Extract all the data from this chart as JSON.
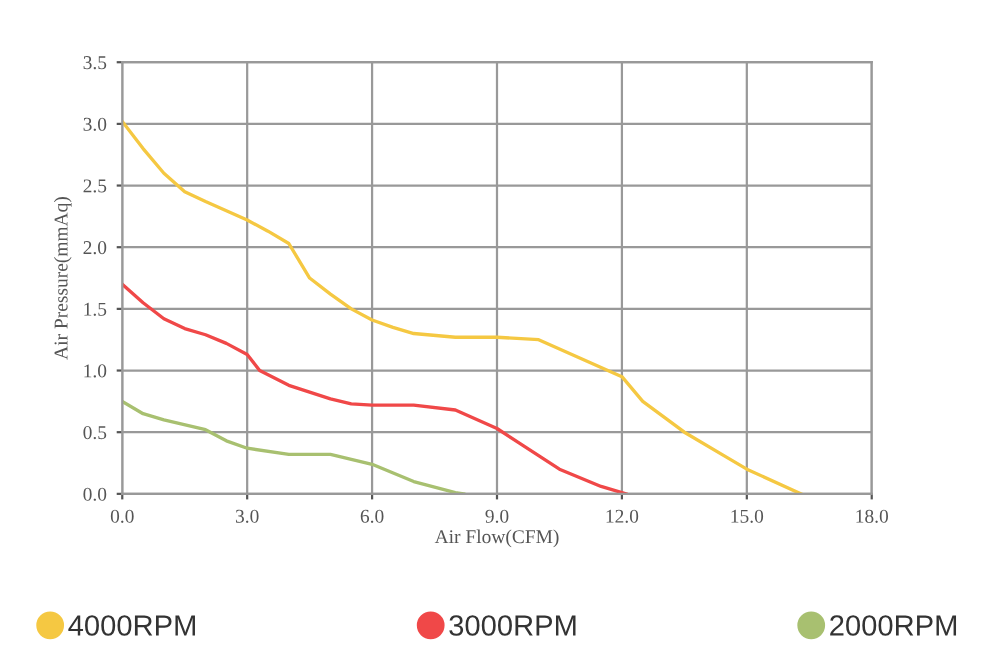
{
  "chart_data": {
    "type": "line",
    "xlabel": "Air Flow(CFM)",
    "ylabel": "Air Pressure(mmAq)",
    "xlim": [
      0,
      18
    ],
    "ylim": [
      0,
      3.5
    ],
    "xticks": [
      {
        "value": 0,
        "label": "0.0"
      },
      {
        "value": 3,
        "label": "3.0"
      },
      {
        "value": 6,
        "label": "6.0"
      },
      {
        "value": 9,
        "label": "9.0"
      },
      {
        "value": 12,
        "label": "12.0"
      },
      {
        "value": 15,
        "label": "15.0"
      },
      {
        "value": 18,
        "label": "18.0"
      }
    ],
    "yticks": [
      {
        "value": 0,
        "label": "0.0"
      },
      {
        "value": 0.5,
        "label": "0.5"
      },
      {
        "value": 1,
        "label": "1.0"
      },
      {
        "value": 1.5,
        "label": "1.5"
      },
      {
        "value": 2,
        "label": "2.0"
      },
      {
        "value": 2.5,
        "label": "2.5"
      },
      {
        "value": 3,
        "label": "3.0"
      },
      {
        "value": 3.5,
        "label": "3.5"
      }
    ],
    "grid": true,
    "legend": "bottom",
    "marker": "none",
    "line_style": "solid",
    "series": [
      {
        "name": "4000RPM",
        "color": "#f5c842",
        "x": [
          0,
          0.5,
          1,
          1.5,
          2,
          3,
          3.5,
          4,
          4.5,
          5,
          5.5,
          6,
          6.5,
          7,
          8,
          9,
          10,
          11,
          12,
          12.5,
          13.5,
          14.5,
          15,
          16.3
        ],
        "values": [
          3.02,
          2.8,
          2.6,
          2.45,
          2.37,
          2.22,
          2.13,
          2.03,
          1.75,
          1.62,
          1.5,
          1.41,
          1.35,
          1.3,
          1.27,
          1.27,
          1.25,
          1.1,
          0.95,
          0.75,
          0.5,
          0.3,
          0.2,
          0
        ]
      },
      {
        "name": "3000RPM",
        "color": "#f04848",
        "x": [
          0,
          0.5,
          1,
          1.5,
          2,
          2.5,
          3,
          3.3,
          4,
          5,
          5.5,
          6,
          7,
          8,
          9,
          9.5,
          10.5,
          11.5,
          12.1
        ],
        "values": [
          1.7,
          1.55,
          1.42,
          1.34,
          1.29,
          1.22,
          1.13,
          1.0,
          0.88,
          0.77,
          0.73,
          0.72,
          0.72,
          0.68,
          0.53,
          0.42,
          0.2,
          0.06,
          0
        ]
      },
      {
        "name": "2000RPM",
        "color": "#a8c070",
        "x": [
          0,
          0.5,
          1,
          2,
          2.5,
          3,
          4,
          5,
          5.5,
          6,
          7,
          8,
          8.2
        ],
        "values": [
          0.75,
          0.65,
          0.6,
          0.52,
          0.43,
          0.37,
          0.32,
          0.32,
          0.28,
          0.24,
          0.1,
          0.01,
          0
        ]
      }
    ]
  }
}
